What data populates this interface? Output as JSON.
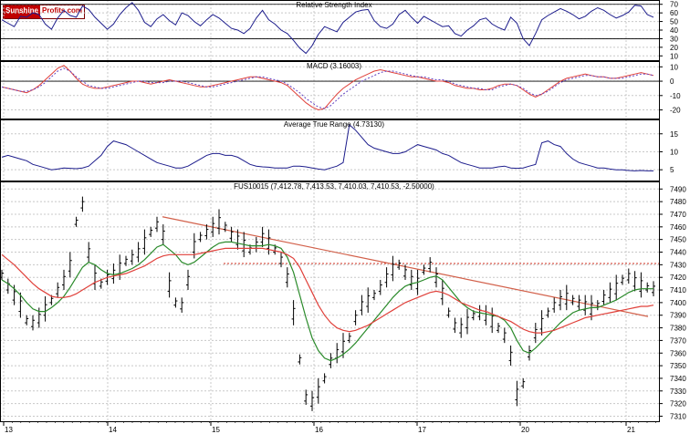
{
  "logo": {
    "part1": "Sunshine",
    "part2": "Profits.com"
  },
  "colors": {
    "price": "#000000",
    "indicator": "#1c1c8c",
    "ma_fast": "#2a8a2a",
    "ma_slow": "#e0403a",
    "trendline": "#d2604a",
    "resistance": "#d03020",
    "grid": "#c8c8c8",
    "axis_text": "#000000"
  },
  "chart_data": [
    {
      "type": "line",
      "title": "Relative Strength Index",
      "y_ticks": [
        "70",
        "60",
        "50",
        "40",
        "30",
        "20",
        "10"
      ],
      "ylim": [
        5,
        75
      ],
      "reference_lines": [
        70,
        30
      ],
      "series": [
        {
          "values": [
            52,
            48,
            44,
            56,
            55,
            60,
            58,
            47,
            41,
            54,
            63,
            57,
            55,
            68,
            64,
            55,
            48,
            41,
            47,
            58,
            66,
            72,
            63,
            49,
            44,
            53,
            58,
            51,
            46,
            60,
            57,
            50,
            45,
            52,
            58,
            54,
            48,
            42,
            40,
            36,
            42,
            54,
            63,
            52,
            47,
            40,
            36,
            28,
            19,
            13,
            22,
            35,
            44,
            41,
            38,
            49,
            55,
            61,
            63,
            64,
            51,
            44,
            42,
            47,
            58,
            63,
            55,
            48,
            56,
            52,
            48,
            44,
            45,
            36,
            33,
            40,
            45,
            52,
            54,
            47,
            43,
            40,
            55,
            48,
            30,
            22,
            36,
            52,
            57,
            61,
            65,
            62,
            58,
            53,
            56,
            62,
            66,
            63,
            58,
            54,
            57,
            61,
            69,
            68,
            58,
            55
          ]
        }
      ]
    },
    {
      "type": "line",
      "title": "MACD (3.16003)",
      "y_ticks": [
        "10",
        "0",
        "-10",
        "-20"
      ],
      "ylim": [
        -26,
        14
      ],
      "series": [
        {
          "values": [
            -4,
            -5,
            -6,
            -7,
            -8,
            -6,
            -3,
            1,
            5,
            9,
            11,
            7,
            2,
            -2,
            -4,
            -5,
            -5,
            -4,
            -3,
            -2,
            -1,
            0,
            0,
            -1,
            -2,
            -1,
            0,
            1,
            0,
            -1,
            -2,
            -3,
            -4,
            -4,
            -3,
            -2,
            -1,
            0,
            1,
            2,
            3,
            3,
            2,
            1,
            0,
            -1,
            -3,
            -7,
            -11,
            -15,
            -18,
            -20,
            -19,
            -14,
            -9,
            -5,
            -2,
            1,
            3,
            5,
            7,
            8,
            7,
            6,
            5,
            4,
            3,
            3,
            2,
            1,
            0,
            0,
            -1,
            -3,
            -4,
            -5,
            -5,
            -6,
            -6,
            -5,
            -3,
            -2,
            -2,
            -3,
            -6,
            -9,
            -11,
            -9,
            -6,
            -3,
            0,
            2,
            3,
            4,
            5,
            4,
            3,
            3,
            2,
            2,
            3,
            4,
            5,
            6,
            5,
            4
          ]
        },
        {
          "values": [
            -4,
            -5,
            -6,
            -7,
            -7,
            -6,
            -4,
            -1,
            3,
            7,
            9,
            7,
            3,
            0,
            -3,
            -4,
            -5,
            -5,
            -4,
            -3,
            -2,
            -1,
            0,
            0,
            -1,
            -1,
            -1,
            0,
            0,
            0,
            -1,
            -2,
            -3,
            -4,
            -4,
            -3,
            -2,
            -1,
            0,
            1,
            2,
            3,
            3,
            2,
            1,
            0,
            -2,
            -5,
            -8,
            -12,
            -15,
            -18,
            -19,
            -17,
            -13,
            -9,
            -6,
            -3,
            0,
            2,
            4,
            6,
            7,
            7,
            6,
            5,
            4,
            3,
            3,
            2,
            1,
            1,
            0,
            -2,
            -3,
            -4,
            -5,
            -5,
            -6,
            -6,
            -4,
            -3,
            -2,
            -3,
            -5,
            -8,
            -10,
            -9,
            -7,
            -4,
            -1,
            1,
            2,
            3,
            4,
            4,
            3,
            3,
            2,
            2,
            2,
            3,
            4,
            5,
            5,
            4
          ]
        }
      ]
    },
    {
      "type": "line",
      "title": "Average True Range (4.73130)",
      "y_ticks": [
        "15",
        "10",
        "5"
      ],
      "ylim": [
        2,
        19
      ],
      "series": [
        {
          "values": [
            8.5,
            9,
            8.5,
            8,
            7.5,
            6.5,
            6,
            5.5,
            5,
            5.2,
            5.5,
            5.4,
            5.3,
            5.5,
            6,
            7.5,
            9,
            11.5,
            13,
            12.5,
            12,
            11,
            10,
            9,
            8,
            7,
            6.5,
            6,
            5.5,
            5.5,
            6,
            7,
            8,
            9,
            9.5,
            9.5,
            9,
            9,
            8.5,
            7.5,
            6.5,
            6,
            5.8,
            5.7,
            5.5,
            5.5,
            5.5,
            6,
            6,
            5.8,
            5.5,
            5.2,
            5,
            5.5,
            6,
            7,
            17.5,
            16,
            14,
            12,
            11,
            10.5,
            10,
            9.5,
            9.5,
            10,
            11,
            12,
            11.5,
            11,
            10.5,
            9.5,
            9,
            8,
            7,
            6.5,
            6,
            5.5,
            5.5,
            5.5,
            5.8,
            6,
            5.5,
            5.4,
            5.5,
            6,
            6.5,
            12.5,
            13,
            12,
            11.5,
            9.5,
            8,
            7,
            6.5,
            6,
            5.5,
            5.5,
            5.2,
            5,
            5,
            4.8,
            4.7,
            4.8,
            4.7,
            4.7
          ]
        }
      ]
    },
    {
      "type": "line",
      "title": "FUS10015 (7,412.78, 7,413.53, 7,410.03, 7,410.53, -2.50000)",
      "x_ticks": [
        "13",
        "14",
        "15",
        "16",
        "17",
        "20",
        "21"
      ],
      "y_ticks": [
        "7490",
        "7480",
        "7470",
        "7460",
        "7450",
        "7440",
        "7430",
        "7420",
        "7410",
        "7400",
        "7390",
        "7380",
        "7370",
        "7360",
        "7350",
        "7340",
        "7330",
        "7320",
        "7310"
      ],
      "ylim": [
        7306,
        7496
      ],
      "resistance": 7431,
      "trendline": [
        7468,
        7389
      ],
      "series": [
        {
          "name": "price",
          "values": [
            7422,
            7413,
            7406,
            7398,
            7386,
            7384,
            7388,
            7395,
            7402,
            7410,
            7418,
            7430,
            7464,
            7478,
            7440,
            7420,
            7415,
            7420,
            7423,
            7428,
            7433,
            7436,
            7440,
            7448,
            7456,
            7462,
            7454,
            7414,
            7400,
            7398,
            7418,
            7445,
            7452,
            7456,
            7460,
            7464,
            7460,
            7454,
            7450,
            7446,
            7442,
            7446,
            7452,
            7448,
            7442,
            7434,
            7420,
            7392,
            7355,
            7325,
            7322,
            7330,
            7340,
            7354,
            7360,
            7366,
            7372,
            7388,
            7398,
            7402,
            7406,
            7412,
            7420,
            7427,
            7430,
            7424,
            7418,
            7416,
            7426,
            7430,
            7420,
            7408,
            7392,
            7382,
            7380,
            7385,
            7390,
            7392,
            7390,
            7386,
            7380,
            7374,
            7358,
            7328,
            7336,
            7360,
            7376,
            7384,
            7392,
            7398,
            7402,
            7404,
            7402,
            7400,
            7398,
            7396,
            7398,
            7404,
            7408,
            7412,
            7418,
            7421,
            7417,
            7414,
            7412,
            7411
          ]
        },
        {
          "name": "moving average (fast)",
          "values": [
            7418,
            7415,
            7411,
            7406,
            7400,
            7395,
            7393,
            7393,
            7396,
            7400,
            7405,
            7412,
            7420,
            7428,
            7432,
            7430,
            7426,
            7423,
            7422,
            7423,
            7425,
            7427,
            7430,
            7434,
            7439,
            7444,
            7446,
            7442,
            7438,
            7432,
            7430,
            7432,
            7436,
            7440,
            7444,
            7447,
            7448,
            7448,
            7447,
            7446,
            7445,
            7445,
            7445,
            7446,
            7445,
            7443,
            7436,
            7424,
            7406,
            7388,
            7372,
            7362,
            7356,
            7354,
            7356,
            7359,
            7363,
            7368,
            7374,
            7380,
            7386,
            7392,
            7398,
            7404,
            7409,
            7413,
            7415,
            7416,
            7418,
            7420,
            7421,
            7418,
            7412,
            7406,
            7400,
            7396,
            7393,
            7392,
            7391,
            7390,
            7389,
            7386,
            7380,
            7370,
            7362,
            7360,
            7364,
            7369,
            7374,
            7379,
            7384,
            7388,
            7392,
            7394,
            7395,
            7396,
            7396,
            7398,
            7400,
            7402,
            7405,
            7408,
            7410,
            7411,
            7411,
            7411
          ]
        },
        {
          "name": "moving average (slow)",
          "values": [
            7438,
            7434,
            7430,
            7425,
            7420,
            7415,
            7411,
            7408,
            7405,
            7404,
            7404,
            7405,
            7407,
            7410,
            7413,
            7416,
            7418,
            7420,
            7421,
            7422,
            7423,
            7425,
            7427,
            7429,
            7432,
            7435,
            7437,
            7438,
            7438,
            7438,
            7438,
            7438,
            7439,
            7440,
            7441,
            7442,
            7443,
            7443,
            7443,
            7443,
            7443,
            7443,
            7443,
            7442,
            7441,
            7440,
            7438,
            7435,
            7428,
            7418,
            7408,
            7398,
            7390,
            7384,
            7380,
            7378,
            7377,
            7378,
            7380,
            7382,
            7385,
            7388,
            7391,
            7394,
            7397,
            7400,
            7402,
            7404,
            7406,
            7408,
            7409,
            7408,
            7406,
            7403,
            7400,
            7398,
            7396,
            7394,
            7393,
            7391,
            7389,
            7387,
            7385,
            7382,
            7379,
            7377,
            7376,
            7376,
            7377,
            7378,
            7380,
            7382,
            7384,
            7386,
            7388,
            7389,
            7390,
            7391,
            7392,
            7393,
            7394,
            7395,
            7396,
            7397,
            7397,
            7398
          ]
        }
      ]
    }
  ]
}
